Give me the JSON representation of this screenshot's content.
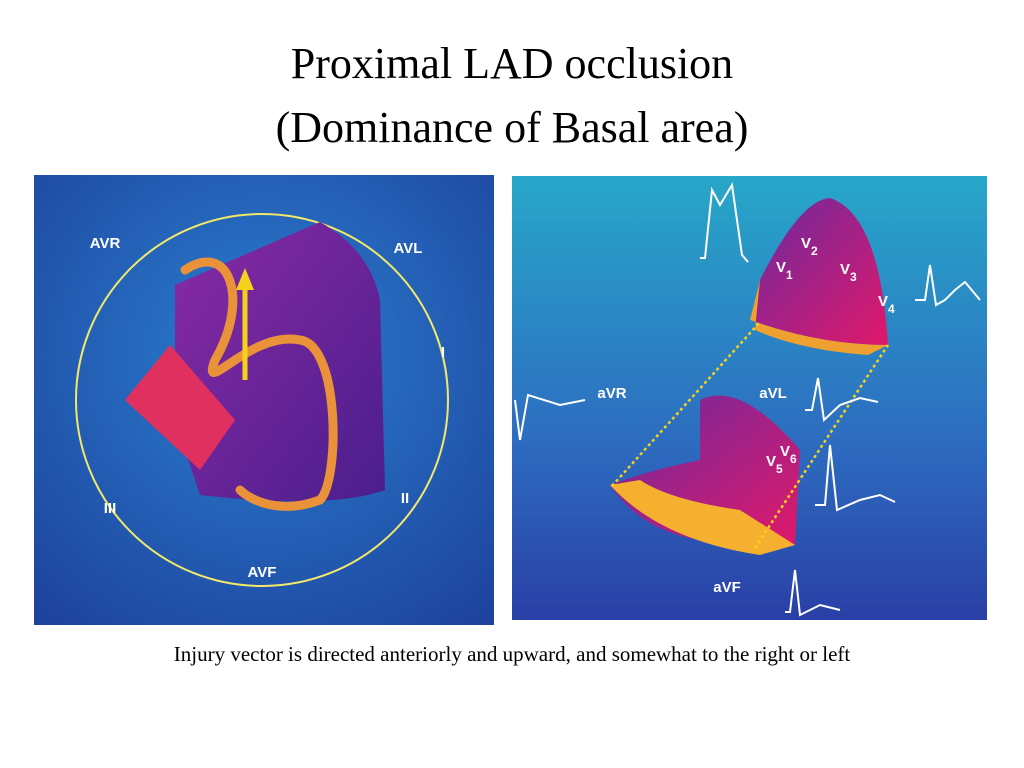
{
  "title": {
    "line1": "Proximal LAD occlusion",
    "line2": "(Dominance of Basal area)"
  },
  "left_panel": {
    "labels": [
      "AVR",
      "AVL",
      "I",
      "II",
      "III",
      "AVF"
    ]
  },
  "right_panel": {
    "labels": [
      "aVR",
      "aVL",
      "aVF"
    ],
    "precordial": [
      {
        "letter": "V",
        "sub": "1"
      },
      {
        "letter": "V",
        "sub": "2"
      },
      {
        "letter": "V",
        "sub": "3"
      },
      {
        "letter": "V",
        "sub": "4"
      },
      {
        "letter": "V",
        "sub": "5"
      },
      {
        "letter": "V",
        "sub": "6"
      }
    ]
  },
  "caption": "Injury vector is directed anteriorly and upward, and somewhat to the right or  left"
}
